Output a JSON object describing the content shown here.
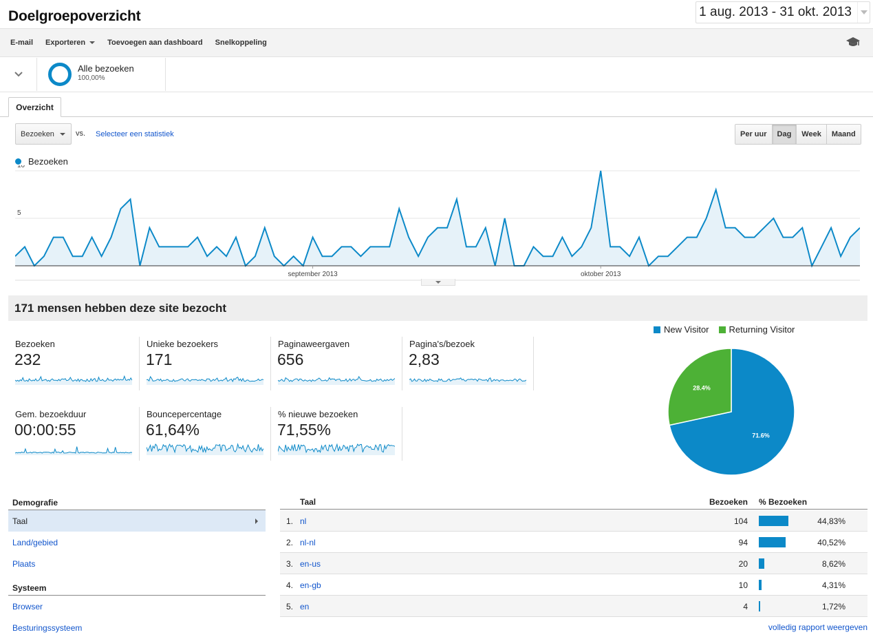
{
  "header": {
    "title": "Doelgroepoverzicht",
    "date_range": "1 aug. 2013 - 31 okt. 2013"
  },
  "toolbar": {
    "email": "E-mail",
    "export": "Exporteren",
    "add_dashboard": "Toevoegen aan dashboard",
    "shortcut": "Snelkoppeling",
    "icons": [
      "chevron-down-icon",
      "graduation-cap-icon"
    ]
  },
  "segment": {
    "name": "Alle bezoeken",
    "pct": "100,00%"
  },
  "tabs": {
    "overview": "Overzicht"
  },
  "controls": {
    "metric": "Bezoeken",
    "vs": "vs.",
    "select_stat": "Selecteer een statistiek",
    "periods": [
      "Per uur",
      "Dag",
      "Week",
      "Maand"
    ],
    "active_period": "Dag"
  },
  "colors": {
    "accent": "#0c89c8",
    "new_visitor": "#0c89c8",
    "returning_visitor": "#4db136"
  },
  "chart_data": {
    "type": "area",
    "series": [
      {
        "name": "Bezoeken",
        "values": [
          1,
          2,
          0,
          1,
          3,
          3,
          1,
          1,
          3,
          1,
          3,
          6,
          7,
          0,
          4,
          2,
          2,
          2,
          2,
          3,
          1,
          2,
          1,
          3,
          0,
          1,
          4,
          1,
          0,
          1,
          0,
          3,
          1,
          1,
          2,
          2,
          1,
          2,
          2,
          2,
          6,
          3,
          1,
          3,
          4,
          4,
          7,
          2,
          2,
          4,
          0,
          5,
          0,
          0,
          2,
          1,
          1,
          3,
          1,
          2,
          4,
          10,
          2,
          2,
          1,
          3,
          0,
          1,
          1,
          2,
          3,
          3,
          5,
          8,
          4,
          4,
          3,
          3,
          4,
          5,
          3,
          3,
          4,
          0,
          2,
          4,
          1,
          3,
          4
        ]
      }
    ],
    "ylim": [
      0,
      10
    ],
    "yticks": [
      {
        "v": 5,
        "t": "5"
      },
      {
        "v": 10,
        "t": "10"
      }
    ],
    "xticks": [
      {
        "i": 31,
        "t": "september 2013"
      },
      {
        "i": 61,
        "t": "oktober 2013"
      }
    ],
    "legend": "top-left",
    "grid": true
  },
  "summary": "171 mensen hebben deze site bezocht",
  "metrics": [
    {
      "label": "Bezoeken",
      "value": "232"
    },
    {
      "label": "Unieke bezoekers",
      "value": "171"
    },
    {
      "label": "Paginaweergaven",
      "value": "656"
    },
    {
      "label": "Pagina's/bezoek",
      "value": "2,83"
    },
    {
      "label": "Gem. bezoekduur",
      "value": "00:00:55"
    },
    {
      "label": "Bouncepercentage",
      "value": "61,64%"
    },
    {
      "label": "% nieuwe bezoeken",
      "value": "71,55%"
    }
  ],
  "pie": {
    "legend": [
      "New Visitor",
      "Returning Visitor"
    ],
    "slices": [
      {
        "name": "New Visitor",
        "value": 71.6,
        "label": "71.6%"
      },
      {
        "name": "Returning Visitor",
        "value": 28.4,
        "label": "28.4%"
      }
    ]
  },
  "nav": {
    "demo_head": "Demografie",
    "demo_items": [
      "Taal",
      "Land/gebied",
      "Plaats"
    ],
    "sys_head": "Systeem",
    "sys_items": [
      "Browser",
      "Besturingssysteem"
    ]
  },
  "table": {
    "headers": {
      "taal": "Taal",
      "visits": "Bezoeken",
      "pct": "% Bezoeken"
    },
    "rows": [
      {
        "n": "1.",
        "lang": "nl",
        "visits": "104",
        "pct": "44,83%",
        "share": 44.83
      },
      {
        "n": "2.",
        "lang": "nl-nl",
        "visits": "94",
        "pct": "40,52%",
        "share": 40.52
      },
      {
        "n": "3.",
        "lang": "en-us",
        "visits": "20",
        "pct": "8,62%",
        "share": 8.62
      },
      {
        "n": "4.",
        "lang": "en-gb",
        "visits": "10",
        "pct": "4,31%",
        "share": 4.31
      },
      {
        "n": "5.",
        "lang": "en",
        "visits": "4",
        "pct": "1,72%",
        "share": 1.72
      }
    ],
    "full_report": "volledig rapport weergeven"
  }
}
